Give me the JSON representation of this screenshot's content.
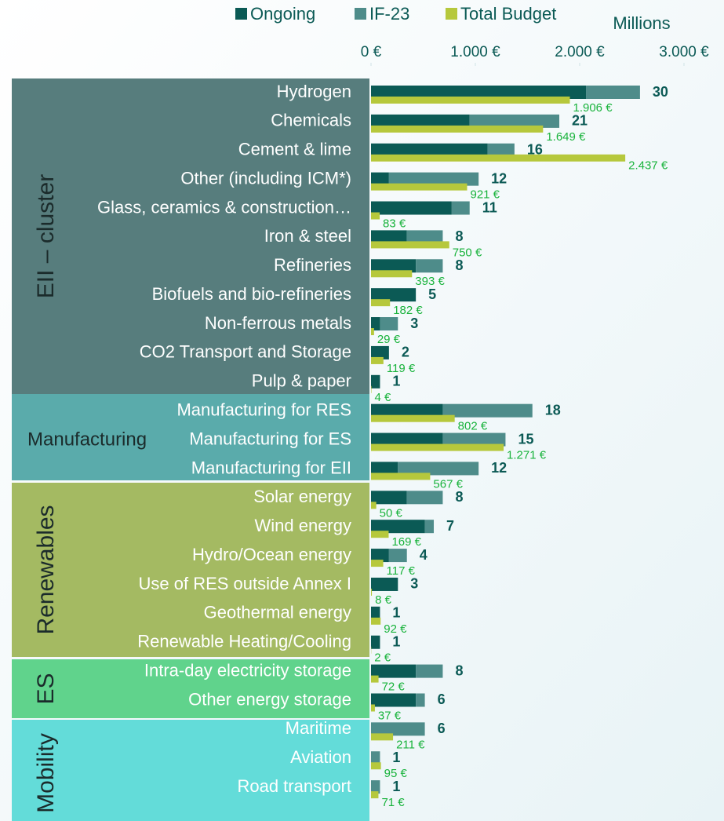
{
  "chart_data": {
    "type": "bar",
    "orientation": "horizontal",
    "xlabel": "Millions",
    "xlim": [
      0,
      3000
    ],
    "xticks": [
      {
        "value": 0,
        "label": "0 €"
      },
      {
        "value": 1000,
        "label": "1.000 €"
      },
      {
        "value": 2000,
        "label": "2.000 €"
      },
      {
        "value": 3000,
        "label": "3.000 €"
      }
    ],
    "groups": [
      {
        "name": "EII – cluster",
        "color": "#577d7d",
        "categories": [
          "Hydrogen",
          "Chemicals",
          "Cement & lime",
          "Other (including ICM*)",
          "Glass, ceramics & construction…",
          "Iron & steel",
          "Refineries",
          "Biofuels and bio-refineries",
          "Non-ferrous metals",
          "CO2 Transport and Storage",
          "Pulp & paper"
        ]
      },
      {
        "name": "Manufacturing",
        "color": "#5aabab",
        "categories": [
          "Manufacturing for RES",
          "Manufacturing for ES",
          "Manufacturing for EII"
        ]
      },
      {
        "name": "Renewables",
        "color": "#a4ba62",
        "categories": [
          "Solar energy",
          "Wind energy",
          "Hydro/Ocean energy",
          "Use of RES outside Annex I",
          "Geothermal energy",
          "Renewable Heating/Cooling"
        ]
      },
      {
        "name": "ES",
        "color": "#60d38c",
        "categories": [
          "Intra-day electricity storage",
          "Other energy storage"
        ]
      },
      {
        "name": "Mobility",
        "color": "#63dcd9",
        "categories": [
          "Maritime",
          "Aviation",
          "Road transport"
        ]
      }
    ],
    "series": [
      {
        "name": "Ongoing",
        "color": "#0b5a55",
        "values": [
          24,
          11,
          13,
          2,
          9,
          4,
          5,
          5,
          1,
          2,
          1,
          8,
          8,
          3,
          4,
          6,
          2,
          3,
          1,
          1,
          5,
          5,
          0,
          0,
          0
        ]
      },
      {
        "name": "IF-23",
        "color": "#4e8c8a",
        "values": [
          6,
          10,
          3,
          10,
          2,
          4,
          3,
          0,
          2,
          0,
          0,
          10,
          7,
          9,
          4,
          1,
          2,
          0,
          0,
          0,
          3,
          1,
          6,
          1,
          1
        ]
      },
      {
        "name": "Total Budget",
        "color": "#b6c83c",
        "axis": "x",
        "values": [
          1906,
          1649,
          2437,
          921,
          83,
          750,
          393,
          182,
          29,
          119,
          4,
          802,
          1271,
          567,
          50,
          169,
          117,
          8,
          92,
          2,
          72,
          37,
          211,
          95,
          71
        ],
        "value_labels": [
          "1.906 €",
          "1.649 €",
          "2.437 €",
          "921 €",
          "83 €",
          "750 €",
          "393 €",
          "182 €",
          "29 €",
          "119 €",
          "4 €",
          "802 €",
          "1.271 €",
          "567 €",
          "50 €",
          "169 €",
          "117 €",
          "8 €",
          "92 €",
          "2 €",
          "72 €",
          "37 €",
          "211 €",
          "95 €",
          "71 €"
        ]
      }
    ],
    "totals": [
      30,
      21,
      16,
      12,
      11,
      8,
      8,
      5,
      3,
      2,
      1,
      18,
      15,
      12,
      8,
      7,
      4,
      3,
      1,
      1,
      8,
      6,
      6,
      1,
      1
    ]
  }
}
